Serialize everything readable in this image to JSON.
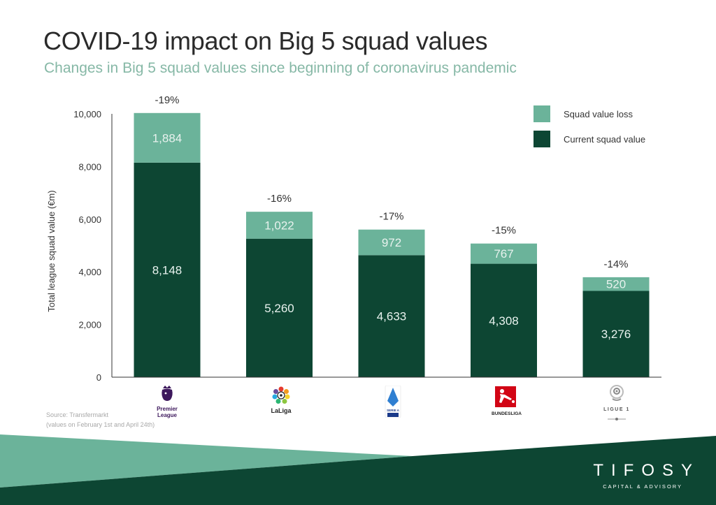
{
  "header": {
    "title": "COVID-19 impact on Big 5 squad values",
    "subtitle": "Changes in Big 5 squad values since beginning of coronavirus pandemic"
  },
  "colors": {
    "current": "#0d4633",
    "loss": "#6bb39a",
    "axis": "#333333",
    "footer_light": "#6bb39a",
    "footer_dark": "#0d4633"
  },
  "chart_data": {
    "type": "bar",
    "stacked": true,
    "title": "COVID-19 impact on Big 5 squad values",
    "xlabel": "",
    "ylabel": "Total league squad value (€m)",
    "ylim": [
      0,
      10000
    ],
    "yticks": [
      0,
      2000,
      4000,
      6000,
      8000,
      10000
    ],
    "ytick_labels": [
      "0",
      "2,000",
      "4,000",
      "6,000",
      "8,000",
      "10,000"
    ],
    "grid": false,
    "legend_position": "top-right",
    "categories": [
      "Premier League",
      "LaLiga",
      "Serie A",
      "Bundesliga",
      "Ligue 1"
    ],
    "series": [
      {
        "name": "Current squad value",
        "values": [
          8148,
          5260,
          4633,
          4308,
          3276
        ],
        "labels": [
          "8,148",
          "5,260",
          "4,633",
          "4,308",
          "3,276"
        ]
      },
      {
        "name": "Squad value loss",
        "values": [
          1884,
          1022,
          972,
          767,
          520
        ],
        "labels": [
          "1,884",
          "1,022",
          "972",
          "767",
          "520"
        ]
      }
    ],
    "annotations": [
      "-19%",
      "-16%",
      "-17%",
      "-15%",
      "-14%"
    ]
  },
  "legend": [
    {
      "label": "Squad value loss",
      "key": "loss"
    },
    {
      "label": "Current squad value",
      "key": "current"
    }
  ],
  "logos": [
    {
      "icon": "premier-league-logo-icon",
      "text": "Premier\nLeague"
    },
    {
      "icon": "laliga-logo-icon",
      "text": "LaLiga"
    },
    {
      "icon": "serie-a-logo-icon",
      "text": "SERIE A"
    },
    {
      "icon": "bundesliga-logo-icon",
      "text": "BUNDESLIGA"
    },
    {
      "icon": "ligue1-logo-icon",
      "text": "LIGUE 1"
    }
  ],
  "source": {
    "line1": "Source: Transfermarkt",
    "line2": "(values on February 1st and April 24th)"
  },
  "brand": {
    "name": "TIFOSY",
    "tagline": "CAPITAL & ADVISORY"
  }
}
